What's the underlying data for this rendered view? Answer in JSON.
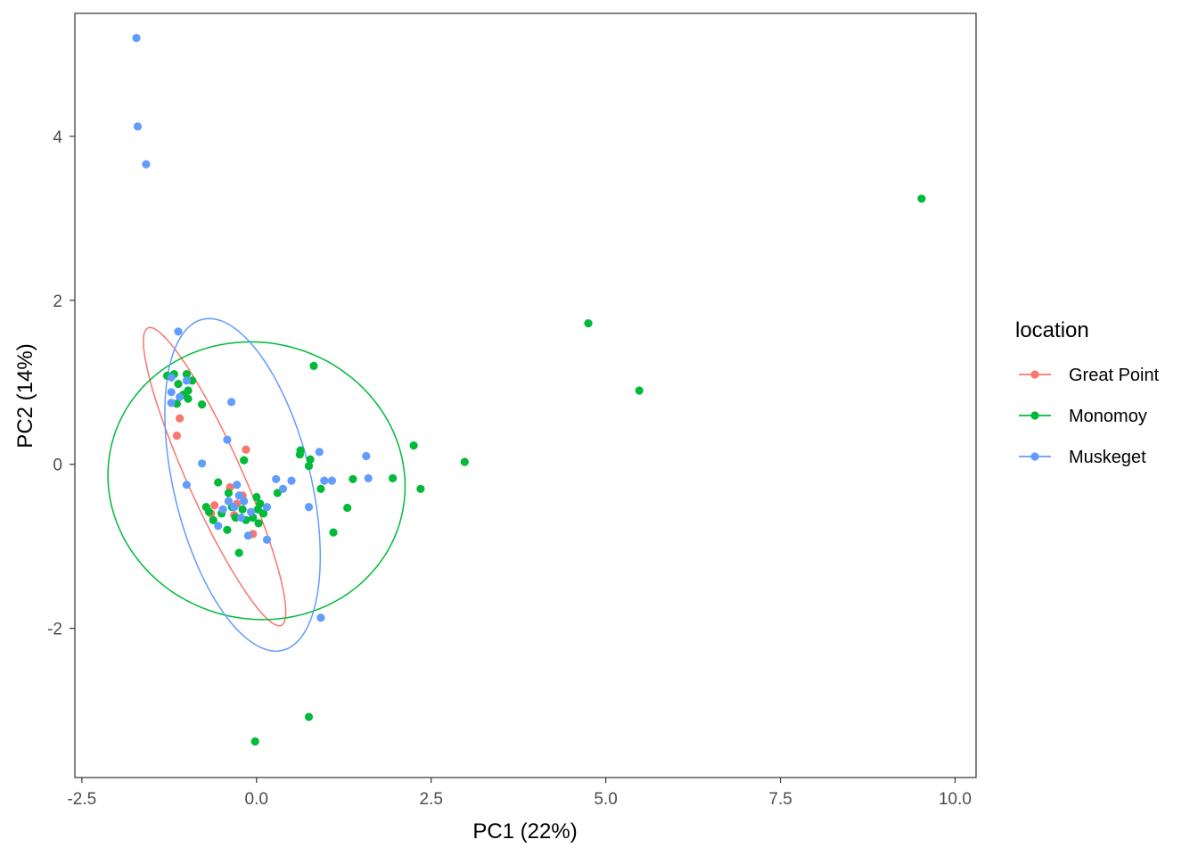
{
  "chart_data": {
    "type": "scatter",
    "title": "",
    "xlabel": "PC1 (22%)",
    "ylabel": "PC2 (14%)",
    "xlim": [
      -2.6,
      10.3
    ],
    "ylim": [
      -3.82,
      5.5
    ],
    "x_ticks": [
      -2.5,
      0.0,
      2.5,
      5.0,
      7.5,
      10.0
    ],
    "x_tick_labels": [
      "-2.5",
      "0.0",
      "2.5",
      "5.0",
      "7.5",
      "10.0"
    ],
    "y_ticks": [
      -2,
      0,
      2,
      4
    ],
    "y_tick_labels": [
      "-2",
      "0",
      "2",
      "4"
    ],
    "grid": false,
    "legend": {
      "title": "location",
      "position": "right"
    },
    "series": [
      {
        "name": "Great Point",
        "color": "#F8766D",
        "points": [
          [
            -1.1,
            0.56
          ],
          [
            -1.14,
            0.35
          ],
          [
            -1.22,
            0.75
          ],
          [
            -0.15,
            0.18
          ],
          [
            -0.38,
            -0.28
          ],
          [
            -0.65,
            -0.6
          ],
          [
            -0.28,
            -0.48
          ],
          [
            -0.48,
            -0.55
          ],
          [
            -0.05,
            -0.85
          ],
          [
            -0.2,
            -0.38
          ],
          [
            -0.6,
            -0.5
          ],
          [
            -0.32,
            -0.62
          ]
        ],
        "ellipse": {
          "center": [
            -0.6,
            -0.15
          ],
          "semi_major": 2.05,
          "semi_minor": 0.38,
          "angle_deg": -62
        }
      },
      {
        "name": "Monomoy",
        "color": "#00BA38",
        "points": [
          [
            -1.28,
            1.08
          ],
          [
            -1.18,
            1.1
          ],
          [
            -1.12,
            0.98
          ],
          [
            -1.0,
            1.1
          ],
          [
            -0.92,
            1.02
          ],
          [
            -0.98,
            0.9
          ],
          [
            -1.05,
            0.85
          ],
          [
            -0.98,
            0.8
          ],
          [
            -1.14,
            0.74
          ],
          [
            -0.78,
            0.73
          ],
          [
            -0.18,
            0.05
          ],
          [
            0.82,
            1.2
          ],
          [
            0.63,
            0.17
          ],
          [
            0.62,
            0.12
          ],
          [
            0.77,
            0.06
          ],
          [
            0.75,
            -0.02
          ],
          [
            1.38,
            -0.18
          ],
          [
            0.92,
            -0.3
          ],
          [
            1.1,
            -0.83
          ],
          [
            1.3,
            -0.53
          ],
          [
            2.25,
            0.23
          ],
          [
            1.95,
            -0.17
          ],
          [
            2.35,
            -0.3
          ],
          [
            2.98,
            0.03
          ],
          [
            0.3,
            -0.35
          ],
          [
            0.05,
            -0.48
          ],
          [
            -0.55,
            -0.22
          ],
          [
            -0.4,
            -0.35
          ],
          [
            -0.72,
            -0.52
          ],
          [
            -0.68,
            -0.58
          ],
          [
            -0.5,
            -0.6
          ],
          [
            -0.42,
            -0.8
          ],
          [
            -0.3,
            -0.65
          ],
          [
            -0.2,
            -0.55
          ],
          [
            -0.15,
            -0.68
          ],
          [
            0.0,
            -0.4
          ],
          [
            0.02,
            -0.55
          ],
          [
            0.1,
            -0.6
          ],
          [
            -0.05,
            -0.65
          ],
          [
            0.03,
            -0.72
          ],
          [
            -0.25,
            -1.08
          ],
          [
            -0.35,
            -0.52
          ],
          [
            -0.62,
            -0.68
          ],
          [
            0.75,
            -3.08
          ],
          [
            -0.02,
            -3.38
          ],
          [
            4.75,
            1.72
          ],
          [
            5.48,
            0.9
          ],
          [
            9.52,
            3.24
          ]
        ],
        "ellipse": {
          "center": [
            0.0,
            -0.2
          ],
          "semi_major": 2.13,
          "semi_minor": 1.69,
          "angle_deg": -5
        }
      },
      {
        "name": "Muskeget",
        "color": "#619CFF",
        "points": [
          [
            -1.72,
            5.2
          ],
          [
            -1.7,
            4.12
          ],
          [
            -1.58,
            3.66
          ],
          [
            -1.12,
            1.62
          ],
          [
            -1.22,
            0.88
          ],
          [
            -1.22,
            1.06
          ],
          [
            -1.1,
            0.82
          ],
          [
            -1.0,
            1.02
          ],
          [
            -1.22,
            0.75
          ],
          [
            -0.36,
            0.76
          ],
          [
            -0.42,
            0.3
          ],
          [
            -0.78,
            0.01
          ],
          [
            -1.0,
            -0.25
          ],
          [
            0.9,
            0.15
          ],
          [
            1.57,
            0.1
          ],
          [
            1.6,
            -0.17
          ],
          [
            0.97,
            -0.2
          ],
          [
            1.08,
            -0.2
          ],
          [
            0.5,
            -0.2
          ],
          [
            0.28,
            -0.18
          ],
          [
            0.38,
            -0.3
          ],
          [
            0.75,
            -0.52
          ],
          [
            0.15,
            -0.92
          ],
          [
            -0.12,
            -0.87
          ],
          [
            -0.55,
            -0.75
          ],
          [
            -0.48,
            -0.55
          ],
          [
            -0.4,
            -0.45
          ],
          [
            -0.25,
            -0.38
          ],
          [
            -0.32,
            -0.52
          ],
          [
            -0.18,
            -0.45
          ],
          [
            -0.22,
            -0.65
          ],
          [
            -0.08,
            -0.58
          ],
          [
            0.15,
            -0.52
          ],
          [
            -0.28,
            -0.25
          ],
          [
            0.92,
            -1.87
          ]
        ],
        "ellipse": {
          "center": [
            -0.2,
            -0.25
          ],
          "semi_major": 2.1,
          "semi_minor": 0.97,
          "angle_deg": -73
        }
      }
    ]
  }
}
